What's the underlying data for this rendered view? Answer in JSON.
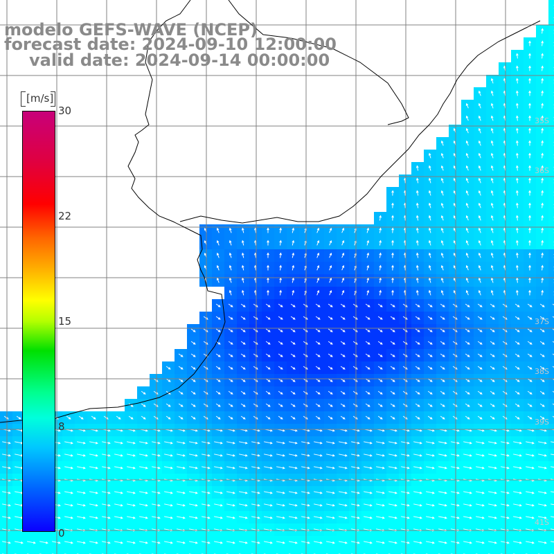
{
  "title": {
    "line1": "modelo GEFS-WAVE (NCEP)",
    "line2": "forecast date: 2024-09-10 12:00:00",
    "line3": "valid date: 2024-09-14 00:00:00"
  },
  "colorbar": {
    "unit": "[m/s]",
    "ticks": [
      "30",
      "22",
      "15",
      "8",
      "0"
    ],
    "tick_values": [
      30,
      22,
      15,
      8,
      0
    ],
    "min": 0,
    "max": 30
  },
  "lat_labels": [
    "35S",
    "36S",
    "37S",
    "38S",
    "39S",
    "41S"
  ],
  "colors": {
    "land": "#ffffff",
    "grid": "#808080",
    "coast": "#000000",
    "arrow": "#ffffff",
    "title": "#8a8a8a"
  }
}
